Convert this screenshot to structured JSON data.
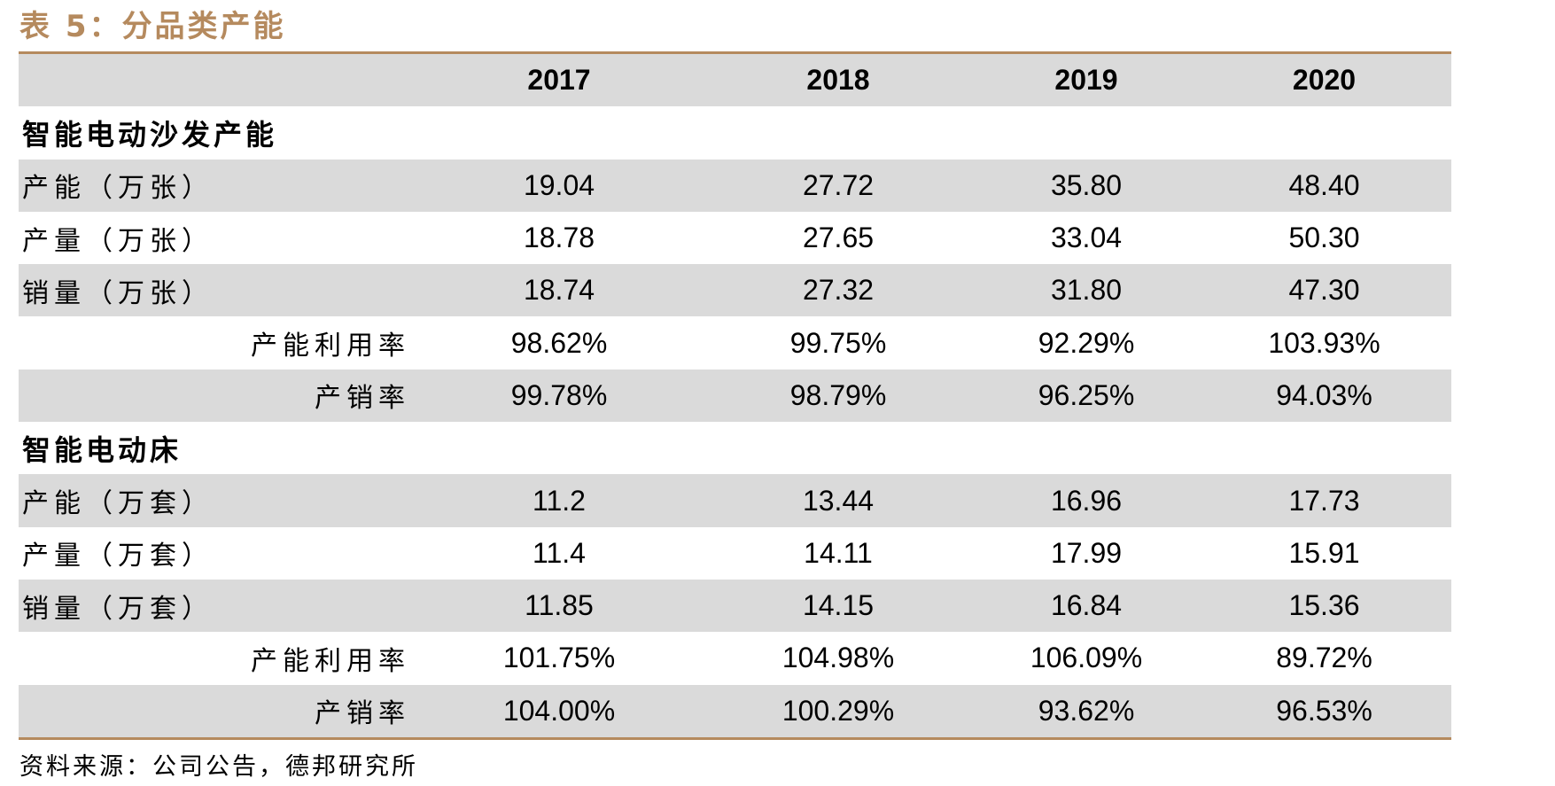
{
  "title": "表 5：分品类产能",
  "header": {
    "years": [
      "2017",
      "2018",
      "2019",
      "2020"
    ]
  },
  "sections": [
    {
      "name": "智能电动沙发产能",
      "rows": [
        {
          "label": "产能（万张）",
          "values": [
            "19.04",
            "27.72",
            "35.80",
            "48.40"
          ]
        },
        {
          "label": "产量（万张）",
          "values": [
            "18.78",
            "27.65",
            "33.04",
            "50.30"
          ]
        },
        {
          "label": "销量（万张）",
          "values": [
            "18.74",
            "27.32",
            "31.80",
            "47.30"
          ]
        },
        {
          "label": "产能利用率",
          "values": [
            "98.62%",
            "99.75%",
            "92.29%",
            "103.93%"
          ]
        },
        {
          "label": "产销率",
          "values": [
            "99.78%",
            "98.79%",
            "96.25%",
            "94.03%"
          ]
        }
      ]
    },
    {
      "name": "智能电动床",
      "rows": [
        {
          "label": "产能（万套）",
          "values": [
            "11.2",
            "13.44",
            "16.96",
            "17.73"
          ]
        },
        {
          "label": "产量（万套）",
          "values": [
            "11.4",
            "14.11",
            "17.99",
            "15.91"
          ]
        },
        {
          "label": "销量（万套）",
          "values": [
            "11.85",
            "14.15",
            "16.84",
            "15.36"
          ]
        },
        {
          "label": "产能利用率",
          "values": [
            "101.75%",
            "104.98%",
            "106.09%",
            "89.72%"
          ]
        },
        {
          "label": "产销率",
          "values": [
            "104.00%",
            "100.29%",
            "93.62%",
            "96.53%"
          ]
        }
      ]
    }
  ],
  "source": "资料来源：公司公告，德邦研究所",
  "colors": {
    "accent": "#b58a5e",
    "row_shade": "#dadada"
  }
}
